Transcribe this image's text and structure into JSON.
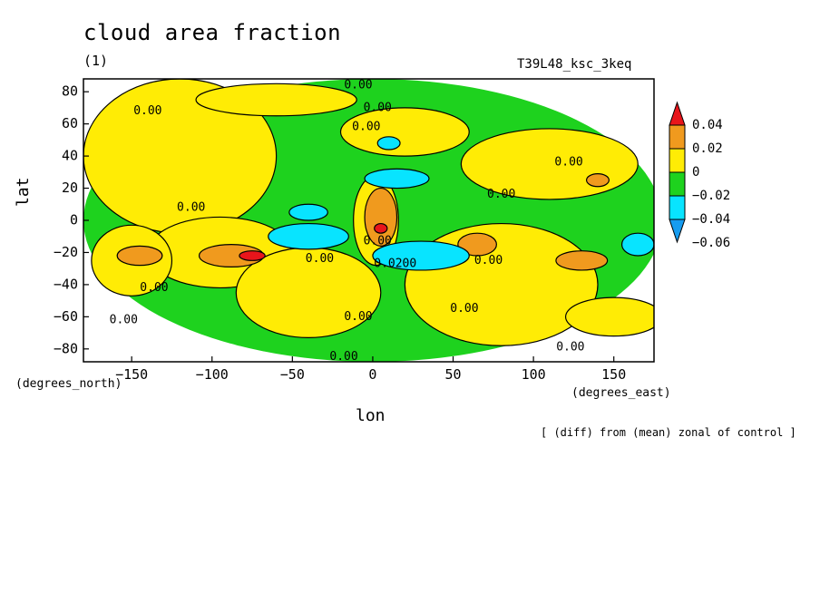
{
  "header": {
    "title": "cloud area fraction",
    "subtitle": "(1)",
    "run_id": "T39L48_ksc_3keq"
  },
  "footer": {
    "note": "[ (diff) from (mean) zonal of control ]"
  },
  "colors": {
    "red": "#e8151b",
    "orange": "#f09a1e",
    "yellow": "#ffec05",
    "green": "#1ed21e",
    "cyan": "#08e4ff",
    "blue": "#169cf0"
  },
  "chart_data": {
    "type": "heatmap",
    "title": "cloud area fraction",
    "xlabel": "lon",
    "ylabel": "lat",
    "x_unit": "(degrees_east)",
    "y_unit": "(degrees_north)",
    "xlim": [
      -180,
      175
    ],
    "ylim": [
      -88,
      88
    ],
    "x_ticks": [
      -150,
      -100,
      -50,
      0,
      50,
      100,
      150
    ],
    "y_ticks": [
      80,
      60,
      40,
      20,
      0,
      -20,
      -40,
      -60,
      -80
    ],
    "x_tick_labels": [
      "−150",
      "−100",
      "−50",
      "0",
      "50",
      "100",
      "150"
    ],
    "y_tick_labels": [
      "80",
      "60",
      "40",
      "20",
      "0",
      "−20",
      "−40",
      "−60",
      "−80"
    ],
    "colorbar": {
      "levels": [
        0.04,
        0.02,
        0,
        -0.02,
        -0.04,
        -0.06
      ],
      "labels": [
        "0.04",
        "0.02",
        "0",
        "−0.02",
        "−0.04",
        "−0.06"
      ],
      "colors": [
        "#e8151b",
        "#f09a1e",
        "#ffec05",
        "#1ed21e",
        "#08e4ff",
        "#169cf0"
      ]
    },
    "contour_labels": [
      {
        "text": "0.00",
        "lon": -9,
        "lat": 84
      },
      {
        "text": "0.00",
        "lon": 3,
        "lat": 70
      },
      {
        "text": "0.00",
        "lon": -140,
        "lat": 68
      },
      {
        "text": "0.00",
        "lon": -4,
        "lat": 58
      },
      {
        "text": "0.00",
        "lon": 122,
        "lat": 36
      },
      {
        "text": "0.00",
        "lon": 80,
        "lat": 16
      },
      {
        "text": "0.00",
        "lon": -113,
        "lat": 8
      },
      {
        "text": "0.00",
        "lon": 3,
        "lat": -13
      },
      {
        "text": "0.00",
        "lon": -33,
        "lat": -24
      },
      {
        "text": "0.0200",
        "lon": 14,
        "lat": -27
      },
      {
        "text": "0.00",
        "lon": 72,
        "lat": -25
      },
      {
        "text": "0.00",
        "lon": -136,
        "lat": -42
      },
      {
        "text": "0.00",
        "lon": -155,
        "lat": -62
      },
      {
        "text": "0.00",
        "lon": -9,
        "lat": -60
      },
      {
        "text": "0.00",
        "lon": 57,
        "lat": -55
      },
      {
        "text": "0.00",
        "lon": 123,
        "lat": -79
      },
      {
        "text": "0.00",
        "lon": -18,
        "lat": -85
      }
    ],
    "features": [
      {
        "level": -0.02,
        "lon": 0,
        "lat": 0,
        "rx": 180,
        "ry": 88
      },
      {
        "level": 0,
        "lon": -120,
        "lat": 40,
        "rx": 60,
        "ry": 48
      },
      {
        "level": 0,
        "lon": -95,
        "lat": -20,
        "rx": 45,
        "ry": 22
      },
      {
        "level": 0,
        "lon": -150,
        "lat": -25,
        "rx": 25,
        "ry": 22
      },
      {
        "level": 0,
        "lon": 80,
        "lat": -40,
        "rx": 60,
        "ry": 38
      },
      {
        "level": 0,
        "lon": 110,
        "lat": 35,
        "rx": 55,
        "ry": 22
      },
      {
        "level": 0,
        "lon": -40,
        "lat": -45,
        "rx": 45,
        "ry": 28
      },
      {
        "level": 0,
        "lon": 20,
        "lat": 55,
        "rx": 40,
        "ry": 15
      },
      {
        "level": 0,
        "lon": 150,
        "lat": -60,
        "rx": 30,
        "ry": 12
      },
      {
        "level": 0,
        "lon": -60,
        "lat": 75,
        "rx": 50,
        "ry": 10
      },
      {
        "level": 0,
        "lon": 2,
        "lat": 0,
        "rx": 14,
        "ry": 28
      },
      {
        "level": 0.02,
        "lon": 5,
        "lat": 2,
        "rx": 10,
        "ry": 18
      },
      {
        "level": 0.02,
        "lon": -88,
        "lat": -22,
        "rx": 20,
        "ry": 7
      },
      {
        "level": 0.02,
        "lon": -145,
        "lat": -22,
        "rx": 14,
        "ry": 6
      },
      {
        "level": 0.02,
        "lon": 65,
        "lat": -15,
        "rx": 12,
        "ry": 7
      },
      {
        "level": 0.02,
        "lon": 130,
        "lat": -25,
        "rx": 16,
        "ry": 6
      },
      {
        "level": 0.02,
        "lon": 140,
        "lat": 25,
        "rx": 7,
        "ry": 4
      },
      {
        "level": 0.04,
        "lon": -75,
        "lat": -22,
        "rx": 8,
        "ry": 3
      },
      {
        "level": 0.04,
        "lon": 5,
        "lat": -5,
        "rx": 4,
        "ry": 3
      },
      {
        "level": -0.04,
        "lon": 15,
        "lat": 26,
        "rx": 20,
        "ry": 6
      },
      {
        "level": -0.04,
        "lon": -40,
        "lat": -10,
        "rx": 25,
        "ry": 8
      },
      {
        "level": -0.04,
        "lon": 30,
        "lat": -22,
        "rx": 30,
        "ry": 9
      },
      {
        "level": -0.04,
        "lon": -40,
        "lat": 5,
        "rx": 12,
        "ry": 5
      },
      {
        "level": -0.04,
        "lon": 165,
        "lat": -15,
        "rx": 10,
        "ry": 7
      },
      {
        "level": -0.04,
        "lon": 10,
        "lat": 48,
        "rx": 7,
        "ry": 4
      }
    ]
  }
}
